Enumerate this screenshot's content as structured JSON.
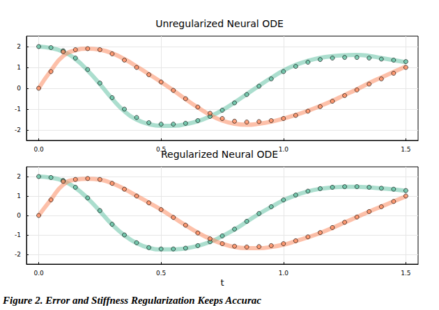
{
  "caption": "Figure 2. Error and Stiffness Regularization Keeps Accurac",
  "chart_data": [
    {
      "type": "line",
      "title": "Unregularized Neural ODE",
      "grid": true,
      "x": [
        0,
        0.05,
        0.1,
        0.15,
        0.2,
        0.25,
        0.3,
        0.35,
        0.4,
        0.45,
        0.5,
        0.55,
        0.6,
        0.65,
        0.7,
        0.75,
        0.8,
        0.85,
        0.9,
        0.95,
        1.0,
        1.05,
        1.1,
        1.15,
        1.2,
        1.25,
        1.3,
        1.35,
        1.4,
        1.45,
        1.5
      ],
      "xlim": [
        -0.05,
        1.55
      ],
      "xticks": [
        {
          "value": 0,
          "label": "0.0"
        },
        {
          "value": 0.5,
          "label": "0.5"
        },
        {
          "value": 1,
          "label": "1.0"
        },
        {
          "value": 1.5,
          "label": "1.5"
        }
      ],
      "ylim": [
        -2.5,
        2.5
      ],
      "yticks": [
        -2,
        -1,
        0,
        1,
        2
      ],
      "series": [
        {
          "type": "line",
          "color": "#66c2a5",
          "values": [
            2.0,
            1.93,
            1.75,
            1.4,
            0.85,
            0.2,
            -0.5,
            -1.1,
            -1.5,
            -1.72,
            -1.8,
            -1.8,
            -1.72,
            -1.58,
            -1.35,
            -1.05,
            -0.68,
            -0.28,
            0.12,
            0.5,
            0.85,
            1.12,
            1.32,
            1.46,
            1.54,
            1.58,
            1.6,
            1.55,
            1.45,
            1.35,
            1.25
          ]
        },
        {
          "type": "line",
          "color": "#fc8d62",
          "values": [
            0,
            0.85,
            1.55,
            1.82,
            1.9,
            1.85,
            1.68,
            1.4,
            1.05,
            0.68,
            0.3,
            -0.1,
            -0.52,
            -0.92,
            -1.28,
            -1.55,
            -1.7,
            -1.75,
            -1.7,
            -1.6,
            -1.45,
            -1.28,
            -1.08,
            -0.85,
            -0.6,
            -0.32,
            -0.05,
            0.25,
            0.52,
            0.78,
            1.05
          ]
        },
        {
          "type": "scatter",
          "marker": "circle",
          "color": "#66c2a5",
          "values": [
            2.0,
            1.95,
            1.8,
            1.45,
            0.9,
            0.25,
            -0.45,
            -1.0,
            -1.4,
            -1.65,
            -1.72,
            -1.72,
            -1.68,
            -1.55,
            -1.35,
            -1.05,
            -0.7,
            -0.3,
            0.1,
            0.45,
            0.8,
            1.05,
            1.25,
            1.38,
            1.45,
            1.48,
            1.48,
            1.45,
            1.4,
            1.35,
            1.28
          ]
        },
        {
          "type": "scatter",
          "marker": "circle",
          "color": "#fc8d62",
          "values": [
            0,
            0.8,
            1.75,
            1.85,
            1.9,
            1.85,
            1.65,
            1.35,
            1.0,
            0.65,
            0.3,
            -0.1,
            -0.5,
            -0.9,
            -1.2,
            -1.45,
            -1.58,
            -1.62,
            -1.6,
            -1.55,
            -1.45,
            -1.3,
            -1.1,
            -0.88,
            -0.62,
            -0.35,
            -0.08,
            0.2,
            0.45,
            0.72,
            1.0
          ]
        }
      ]
    },
    {
      "type": "line",
      "title": "Regularized Neural ODE",
      "x_label": "t",
      "grid": true,
      "x": [
        0,
        0.05,
        0.1,
        0.15,
        0.2,
        0.25,
        0.3,
        0.35,
        0.4,
        0.45,
        0.5,
        0.55,
        0.6,
        0.65,
        0.7,
        0.75,
        0.8,
        0.85,
        0.9,
        0.95,
        1.0,
        1.05,
        1.1,
        1.15,
        1.2,
        1.25,
        1.3,
        1.35,
        1.4,
        1.45,
        1.5
      ],
      "xlim": [
        -0.05,
        1.55
      ],
      "xticks": [
        {
          "value": 0,
          "label": "0.0"
        },
        {
          "value": 0.5,
          "label": "0.5"
        },
        {
          "value": 1,
          "label": "1.0"
        },
        {
          "value": 1.5,
          "label": "1.5"
        }
      ],
      "ylim": [
        -2.5,
        2.5
      ],
      "yticks": [
        -2,
        -1,
        0,
        1,
        2
      ],
      "series": [
        {
          "type": "line",
          "color": "#66c2a5",
          "values": [
            2.0,
            1.94,
            1.78,
            1.42,
            0.88,
            0.22,
            -0.47,
            -1.02,
            -1.42,
            -1.66,
            -1.74,
            -1.74,
            -1.69,
            -1.56,
            -1.36,
            -1.06,
            -0.72,
            -0.32,
            0.08,
            0.44,
            0.78,
            1.04,
            1.24,
            1.37,
            1.44,
            1.47,
            1.47,
            1.44,
            1.39,
            1.34,
            1.27
          ]
        },
        {
          "type": "line",
          "color": "#fc8d62",
          "values": [
            0,
            0.82,
            1.58,
            1.84,
            1.88,
            1.84,
            1.65,
            1.36,
            1.01,
            0.66,
            0.3,
            -0.1,
            -0.5,
            -0.88,
            -1.2,
            -1.45,
            -1.62,
            -1.68,
            -1.68,
            -1.62,
            -1.5,
            -1.32,
            -1.12,
            -0.9,
            -0.64,
            -0.36,
            -0.08,
            0.2,
            0.46,
            0.72,
            0.98
          ]
        },
        {
          "type": "scatter",
          "marker": "circle",
          "color": "#66c2a5",
          "values": [
            2.0,
            1.95,
            1.8,
            1.45,
            0.9,
            0.25,
            -0.45,
            -1.0,
            -1.4,
            -1.65,
            -1.72,
            -1.72,
            -1.68,
            -1.55,
            -1.35,
            -1.05,
            -0.7,
            -0.3,
            0.1,
            0.45,
            0.8,
            1.05,
            1.25,
            1.38,
            1.45,
            1.48,
            1.48,
            1.45,
            1.4,
            1.35,
            1.28
          ]
        },
        {
          "type": "scatter",
          "marker": "circle",
          "color": "#fc8d62",
          "values": [
            0,
            0.8,
            1.75,
            1.85,
            1.9,
            1.85,
            1.65,
            1.35,
            1.0,
            0.65,
            0.3,
            -0.1,
            -0.5,
            -0.9,
            -1.2,
            -1.45,
            -1.58,
            -1.62,
            -1.6,
            -1.55,
            -1.45,
            -1.3,
            -1.1,
            -0.88,
            -0.62,
            -0.35,
            -0.08,
            0.2,
            0.45,
            0.72,
            1.0
          ]
        }
      ]
    }
  ]
}
